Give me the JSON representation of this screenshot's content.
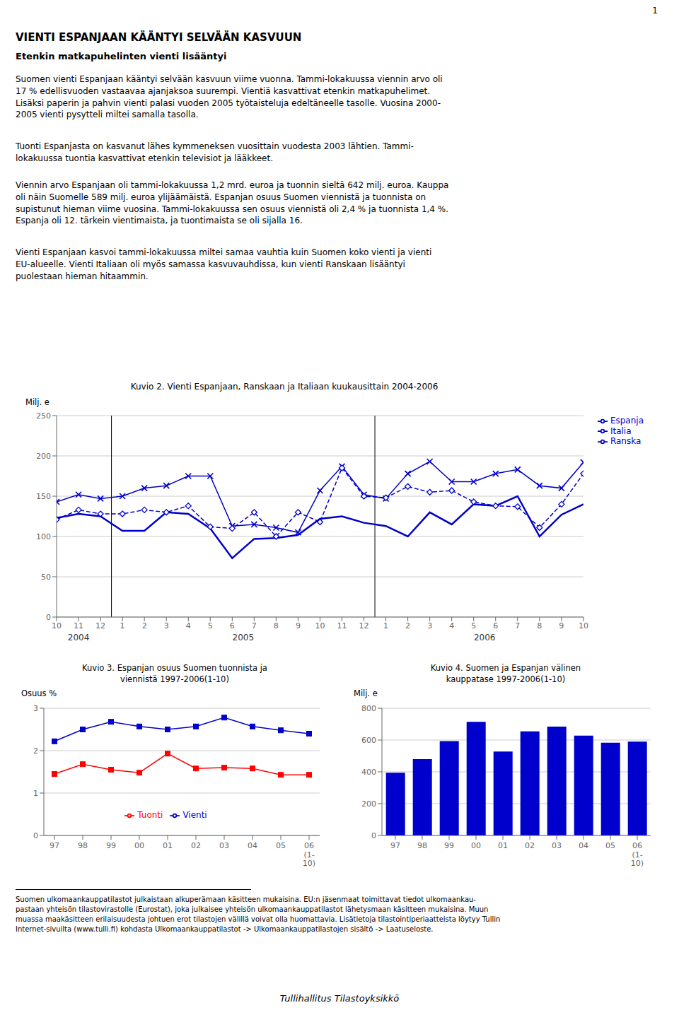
{
  "page_number": "1",
  "title": "VIENTI ESPANJAAN KÄÄNTYI SELVÄÄN KASVUUN",
  "subtitle": "Etenkin matkapuhelinten vienti lisääntyi",
  "text": [
    "Suomen vienti Espanjaan kääntyi selvään kasvuun viime vuonna. Tammi-lokakuussa viennin arvo oli\n17 % edellisvuoden vastaavaa ajanjaksoa suurempi. Vientiä kasvattivat etenkin matkapuhelimet.\nLisäksi paperin ja pahvin vienti palasi vuoden 2005 työtaisteluja edeltäneelle tasolle. Vuosina 2000-\n2005 vienti pysytteli miltei samalla tasolla.",
    "Tuonti Espanjasta on kasvanut lähes kymmeneksen vuosittain vuodesta 2003 lähtien. Tammi-\nlokakuussa tuontia kasvattivat etenkin televisiot ja lääkkeet.",
    "Viennin arvo Espanjaan oli tammi-lokakuussa 1,2 mrd. euroa ja tuonnin sieltä 642 milj. euroa. Kauppa\noli näin Suomelle 589 milj. euroa ylijäämäistä. Espanjan osuus Suomen viennistä ja tuonnista on\nsupistunut hieman viime vuosina. Tammi-lokakuussa sen osuus viennistä oli 2,4 % ja tuonnista 1,4 %.\nEspanja oli 12. tärkein vientimaista, ja tuontimaista se oli sijalla 16.",
    "Vienti Espanjaan kasvoi tammi-lokakuussa miltei samaa vauhtia kuin Suomen koko vienti ja vienti\nEU-alueelle. Vienti Italiaan oli myös samassa kasvuvauhdissa, kun vienti Ranskaan lisääntyi\npuolestaan hieman hitaammin."
  ],
  "footnote": "Suomen ulkomaankauppatilastot julkaistaan alkuperämaan käsitteen mukaisina. EU:n jäsenmaat toimittavat tiedot ulkomaankau-\npastaan yhteisön tilastovirastolle (Eurostat), joka julkaisee yhteisön ulkomaankauppatilastot lähetysmaan käsitteen mukaisina. Muun\nmuassa maakäsitteen erilaisuudesta johtuen erot tilastojen välillä voivat olla huomattavia. Lisätietoja tilastointiperiaatteista löytyy Tullin\nInternet-sivuilta (www.tulli.fi) kohdasta Ulkomaankauppatilastot -> Ulkomaankauppatilastojen sisältö -> Laatuseloste.",
  "footer": "Tullihallitus Tilastoyksikkö",
  "chart_data": [
    {
      "type": "line",
      "title": "Kuvio 2. Vienti Espanjaan, Ranskaan ja Italiaan kuukausittain 2004-2006",
      "ylabel": "Milj. e",
      "categories": [
        "10",
        "11",
        "12",
        "1",
        "2",
        "3",
        "4",
        "5",
        "6",
        "7",
        "8",
        "9",
        "10",
        "11",
        "12",
        "1",
        "2",
        "3",
        "4",
        "5",
        "6",
        "7",
        "8",
        "9",
        "10"
      ],
      "annotations": [
        "2004",
        "2005",
        "2006"
      ],
      "series": [
        {
          "name": "Ranska",
          "color": "#0000CD",
          "marker": "x",
          "line_style": "solid",
          "values": [
            143,
            152,
            147,
            150,
            160,
            163,
            175,
            175,
            113,
            115,
            111,
            105,
            157,
            187,
            152,
            147,
            178,
            193,
            168,
            168,
            178,
            183,
            163,
            160,
            192
          ]
        },
        {
          "name": "Italia",
          "color": "#0000CD",
          "marker": "diamond",
          "line_style": "dashed",
          "values": [
            121,
            133,
            128,
            128,
            133,
            130,
            138,
            112,
            110,
            130,
            100,
            130,
            118,
            185,
            150,
            148,
            162,
            155,
            157,
            143,
            138,
            137,
            111,
            140,
            178
          ]
        },
        {
          "name": "Espanja",
          "color": "#0000CD",
          "marker": "none",
          "line_style": "solid",
          "values": [
            123,
            128,
            125,
            107,
            107,
            130,
            128,
            110,
            73,
            97,
            98,
            102,
            122,
            125,
            117,
            113,
            100,
            130,
            115,
            140,
            138,
            150,
            100,
            127,
            140
          ]
        }
      ],
      "ylim": [
        0,
        250
      ],
      "yticks": [
        0,
        50,
        100,
        150,
        200,
        250
      ],
      "grid": true,
      "legend": "right"
    },
    {
      "type": "line",
      "title": "Kuvio 3. Espanjan osuus Suomen tuonnista ja\nviennistä 1997-2006(1-10)",
      "ylabel": "Osuus %",
      "categories": [
        "97",
        "98",
        "99",
        "00",
        "01",
        "02",
        "03",
        "04",
        "05",
        "06\n(1-\n10)"
      ],
      "series": [
        {
          "name": "Tuonti",
          "color": "red",
          "marker": "square",
          "line_style": "solid",
          "values": [
            1.45,
            1.68,
            1.55,
            1.48,
            1.93,
            1.58,
            1.6,
            1.58,
            1.43,
            1.43
          ]
        },
        {
          "name": "Vienti",
          "color": "#0000CD",
          "marker": "square",
          "line_style": "solid",
          "values": [
            2.22,
            2.5,
            2.68,
            2.57,
            2.5,
            2.57,
            2.78,
            2.57,
            2.48,
            2.4
          ]
        }
      ],
      "ylim": [
        0,
        3
      ],
      "yticks": [
        0,
        1,
        2,
        3
      ],
      "grid": true,
      "legend": "lower center"
    },
    {
      "type": "bar",
      "title": "Kuvio 4. Suomen ja Espanjan välinen\nkauppatase 1997-2006(1-10)",
      "ylabel": "Milj. e",
      "categories": [
        "97",
        "98",
        "99",
        "00",
        "01",
        "02",
        "03",
        "04",
        "05",
        "06\n(1-\n10)"
      ],
      "values": [
        395,
        480,
        593,
        715,
        528,
        655,
        685,
        628,
        583,
        590
      ],
      "color": "#0000CD",
      "ylim": [
        0,
        800
      ],
      "yticks": [
        0,
        200,
        400,
        600,
        800
      ],
      "grid": true
    }
  ]
}
